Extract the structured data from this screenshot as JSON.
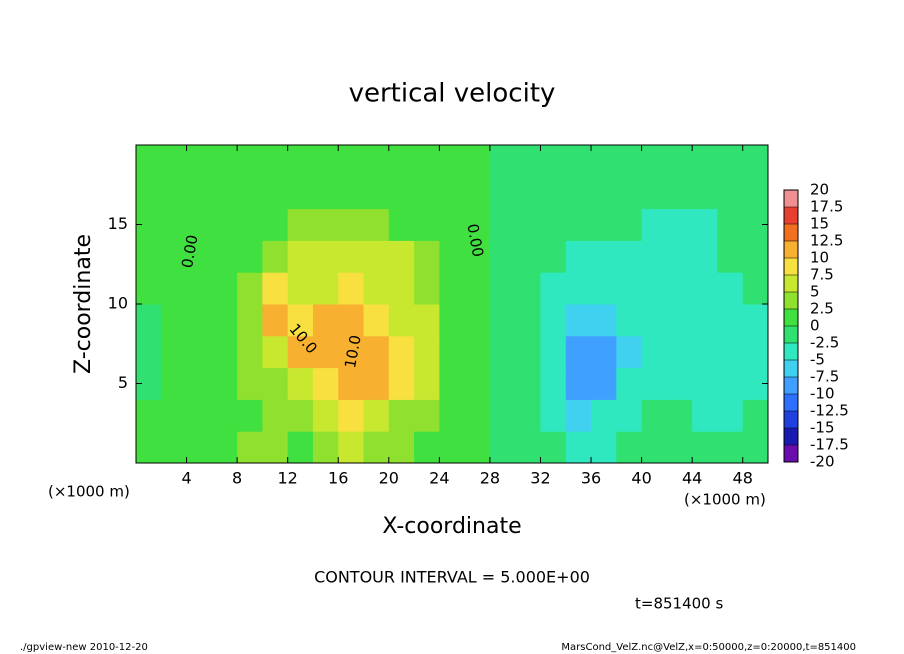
{
  "chart_data": {
    "type": "heatmap",
    "title": "vertical velocity",
    "x_label": "X-coordinate",
    "y_label": "Z-coordinate",
    "x_unit": "(×1000 m)",
    "x": [
      1,
      3,
      5,
      7,
      9,
      11,
      13,
      15,
      17,
      19,
      21,
      23,
      25,
      27,
      29,
      31,
      33,
      35,
      37,
      39,
      41,
      43,
      45,
      47,
      49
    ],
    "y": [
      1,
      3,
      5,
      7,
      9,
      11,
      13,
      15,
      17,
      19
    ],
    "values": [
      [
        2,
        1,
        1,
        2,
        3,
        3,
        2,
        4,
        6,
        3,
        3,
        2,
        1.5,
        0.5,
        -0.5,
        -1,
        -2,
        -3,
        -3,
        -1,
        -1,
        -1,
        -2,
        -2,
        -1
      ],
      [
        0.5,
        0.5,
        1,
        2,
        2,
        3,
        3,
        5,
        8,
        6,
        4,
        3,
        2,
        0.5,
        -0.5,
        -1,
        -3,
        -6,
        -5,
        -3,
        -2,
        -2,
        -3,
        -3,
        -2
      ],
      [
        -1,
        0.5,
        1,
        2,
        3,
        4,
        6,
        9,
        10,
        11,
        8,
        5,
        2,
        0.5,
        -0.5,
        -2,
        -5,
        -9,
        -8,
        -5,
        -4,
        -4,
        -4,
        -5,
        -3
      ],
      [
        -2,
        0.5,
        1,
        1.5,
        4,
        6,
        10,
        10,
        12,
        11,
        8,
        5,
        2,
        0.5,
        -0.5,
        -2,
        -4,
        -8,
        -9,
        -6,
        -4,
        -4,
        -4,
        -4,
        -3
      ],
      [
        -0.5,
        1,
        1,
        1.5,
        4,
        10,
        9,
        10,
        12,
        9,
        7,
        5,
        2,
        0.5,
        -0.5,
        -2,
        -4,
        -6,
        -6,
        -5,
        -4,
        -4,
        -4,
        -4,
        -3
      ],
      [
        0.5,
        1,
        1,
        1.5,
        3,
        8,
        7,
        7,
        8,
        7,
        6,
        4,
        2,
        0.5,
        -0.5,
        -1.5,
        -3,
        -4,
        -5,
        -5,
        -4,
        -4,
        -4,
        -3,
        -2
      ],
      [
        1,
        1,
        1,
        1,
        2,
        4,
        5,
        6,
        6,
        5.5,
        5,
        3,
        1.5,
        0.5,
        -0.5,
        -1,
        -2,
        -3,
        -3,
        -4,
        -4,
        -5,
        -4,
        -2,
        -1
      ],
      [
        1,
        1,
        1,
        1,
        1.5,
        2,
        2.5,
        3,
        3,
        2.5,
        2,
        1.5,
        1,
        0.5,
        -0.5,
        -0.5,
        -1,
        -1,
        -1,
        -2,
        -3,
        -4,
        -3,
        -1,
        -0.5
      ],
      [
        1,
        1,
        1,
        1,
        1,
        1.5,
        1.5,
        1.5,
        1.5,
        1.5,
        1,
        1,
        1,
        0.5,
        -0.5,
        -0.5,
        -0.5,
        -0.5,
        -0.5,
        -1,
        -1,
        -1,
        -1,
        -0.5,
        -0.5
      ],
      [
        1,
        1,
        1,
        1,
        1,
        1,
        1,
        1,
        1,
        1,
        1,
        1,
        1,
        0.5,
        -0.5,
        -0.5,
        -0.5,
        -0.5,
        -0.5,
        -0.5,
        -0.5,
        -0.5,
        -0.5,
        -0.5,
        -0.5
      ]
    ],
    "xlim": [
      0,
      50
    ],
    "xticks": [
      4,
      8,
      12,
      16,
      20,
      24,
      28,
      32,
      36,
      40,
      44,
      48
    ],
    "ylim": [
      0,
      20
    ],
    "yticks": [
      5,
      10,
      15
    ],
    "levels": [
      -20,
      -17.5,
      -15,
      -12.5,
      -10,
      -7.5,
      -5,
      -2.5,
      0,
      2.5,
      5,
      7.5,
      10,
      12.5,
      15,
      17.5,
      20
    ],
    "colors": [
      "#6a0dad",
      "#1a1ab0",
      "#2040e0",
      "#2f6fff",
      "#40a0ff",
      "#40d0f0",
      "#30e8c0",
      "#30e070",
      "#40e040",
      "#90e030",
      "#c8e830",
      "#f8e040",
      "#f8b030",
      "#f07020",
      "#e84030",
      "#f09090"
    ],
    "annotations": [
      {
        "text": "0.00",
        "x": 4.3,
        "y": 13.3
      },
      {
        "text": "0.00",
        "x": 26.8,
        "y": 14
      },
      {
        "text": "10.0",
        "x": 13.2,
        "y": 7.8
      },
      {
        "text": "10.0",
        "x": 17.2,
        "y": 7
      }
    ],
    "contour_interval": "CONTOUR INTERVAL = 5.000E+00",
    "time": "t=851400 s",
    "footer_left": "./gpview-new  2010-12-20",
    "footer_right": "MarsCond_VelZ.nc@VelZ,x=0:50000,z=0:20000,t=851400"
  }
}
